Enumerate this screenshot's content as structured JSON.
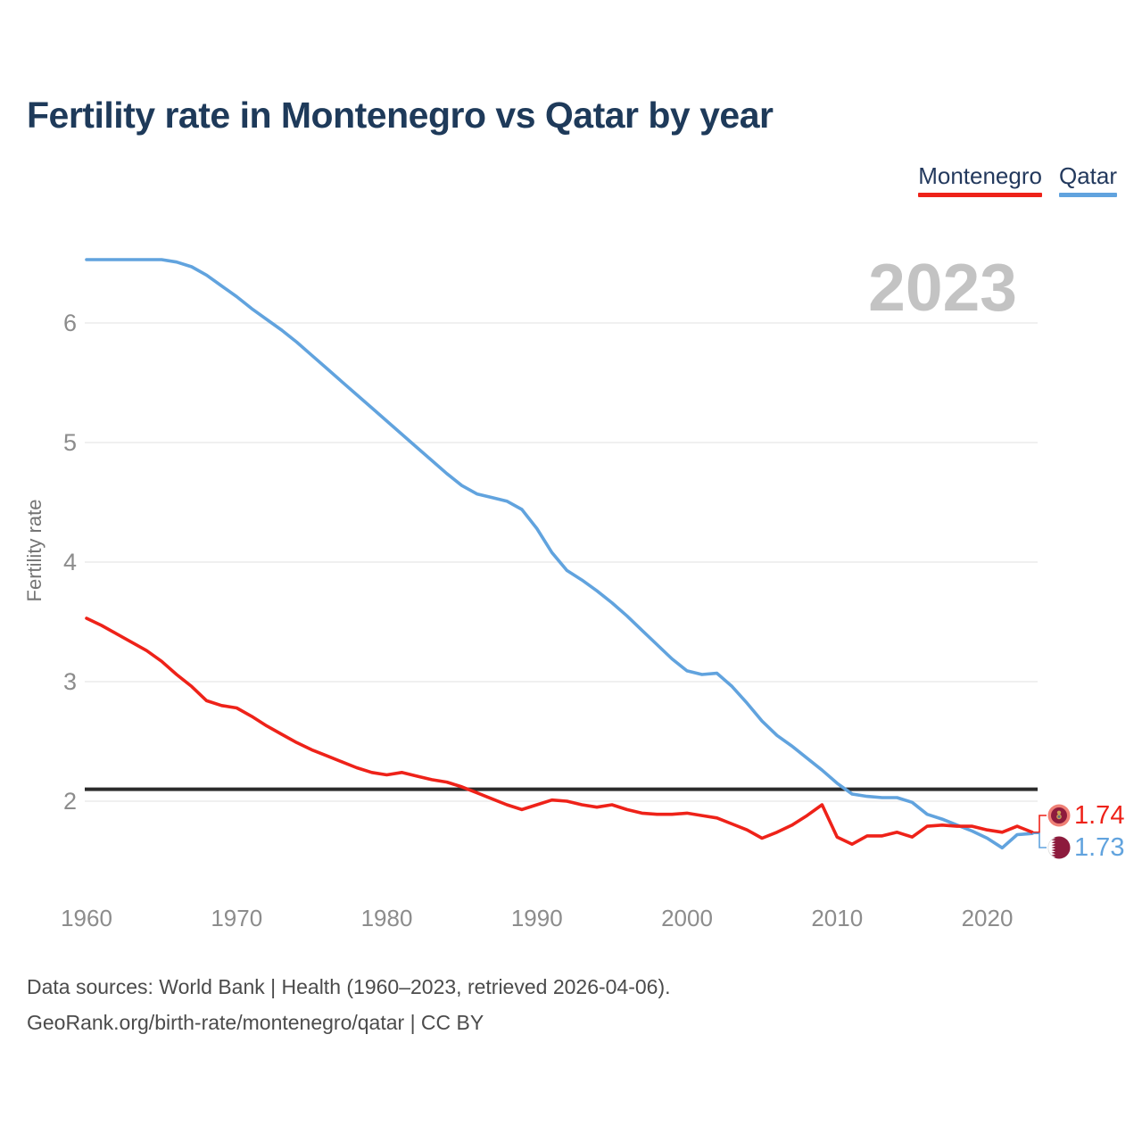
{
  "page": {
    "title": "Fertility rate in Montenegro vs Qatar by year",
    "watermark": "2023",
    "footer_line1": "Data sources: World Bank | Health (1960–2023, retrieved 2026-04-06).",
    "footer_line2": "GeoRank.org/birth-rate/montenegro/qatar | CC BY"
  },
  "colors": {
    "title": "#1e3a5a",
    "tick_text": "#8c8c8c",
    "axis_title": "#757575",
    "gridline": "#ebebeb",
    "watermark": "#c3c3c3",
    "reference_line": "#2b2b2b",
    "footer_text": "#4b4b4b"
  },
  "chart_data": {
    "type": "line",
    "title": "Fertility rate in Montenegro vs Qatar by year",
    "xlabel": "",
    "ylabel": "Fertility rate",
    "grid": "horizontal-only",
    "legend_position": "top-right",
    "x_ticks": [
      1960,
      1970,
      1980,
      1990,
      2000,
      2010,
      2020
    ],
    "y_ticks": [
      2,
      3,
      4,
      5,
      6
    ],
    "xlim": [
      1960,
      2023
    ],
    "ylim": [
      1.45,
      6.75
    ],
    "reference_line": {
      "value": 2.1,
      "label": ""
    },
    "years": [
      1960,
      1961,
      1962,
      1963,
      1964,
      1965,
      1966,
      1967,
      1968,
      1969,
      1970,
      1971,
      1972,
      1973,
      1974,
      1975,
      1976,
      1977,
      1978,
      1979,
      1980,
      1981,
      1982,
      1983,
      1984,
      1985,
      1986,
      1987,
      1988,
      1989,
      1990,
      1991,
      1992,
      1993,
      1994,
      1995,
      1996,
      1997,
      1998,
      1999,
      2000,
      2001,
      2002,
      2003,
      2004,
      2005,
      2006,
      2007,
      2008,
      2009,
      2010,
      2011,
      2012,
      2013,
      2014,
      2015,
      2016,
      2017,
      2018,
      2019,
      2020,
      2021,
      2022,
      2023
    ],
    "series": [
      {
        "name": "Montenegro",
        "color": "#ee2219",
        "end_label": "1.74",
        "icon": "montenegro-flag-icon",
        "values": [
          3.53,
          3.47,
          3.4,
          3.33,
          3.26,
          3.17,
          3.06,
          2.96,
          2.84,
          2.8,
          2.78,
          2.71,
          2.63,
          2.56,
          2.49,
          2.43,
          2.38,
          2.33,
          2.28,
          2.24,
          2.22,
          2.24,
          2.21,
          2.18,
          2.16,
          2.12,
          2.07,
          2.02,
          1.97,
          1.93,
          1.97,
          2.01,
          2.0,
          1.97,
          1.95,
          1.97,
          1.93,
          1.9,
          1.89,
          1.89,
          1.9,
          1.88,
          1.86,
          1.81,
          1.76,
          1.69,
          1.74,
          1.8,
          1.88,
          1.97,
          1.7,
          1.64,
          1.71,
          1.71,
          1.74,
          1.7,
          1.79,
          1.8,
          1.79,
          1.79,
          1.76,
          1.74,
          1.79,
          1.74
        ]
      },
      {
        "name": "Qatar",
        "color": "#61a3de",
        "end_label": "1.73",
        "icon": "qatar-flag-icon",
        "values": [
          6.53,
          6.53,
          6.53,
          6.53,
          6.53,
          6.53,
          6.51,
          6.47,
          6.4,
          6.31,
          6.22,
          6.12,
          6.03,
          5.94,
          5.84,
          5.73,
          5.62,
          5.51,
          5.4,
          5.29,
          5.18,
          5.07,
          4.96,
          4.85,
          4.74,
          4.64,
          4.57,
          4.54,
          4.51,
          4.44,
          4.28,
          4.08,
          3.93,
          3.85,
          3.76,
          3.66,
          3.55,
          3.43,
          3.31,
          3.19,
          3.09,
          3.06,
          3.07,
          2.96,
          2.82,
          2.67,
          2.55,
          2.46,
          2.36,
          2.26,
          2.15,
          2.06,
          2.04,
          2.03,
          2.03,
          1.99,
          1.89,
          1.85,
          1.8,
          1.75,
          1.69,
          1.61,
          1.72,
          1.73
        ]
      }
    ]
  }
}
